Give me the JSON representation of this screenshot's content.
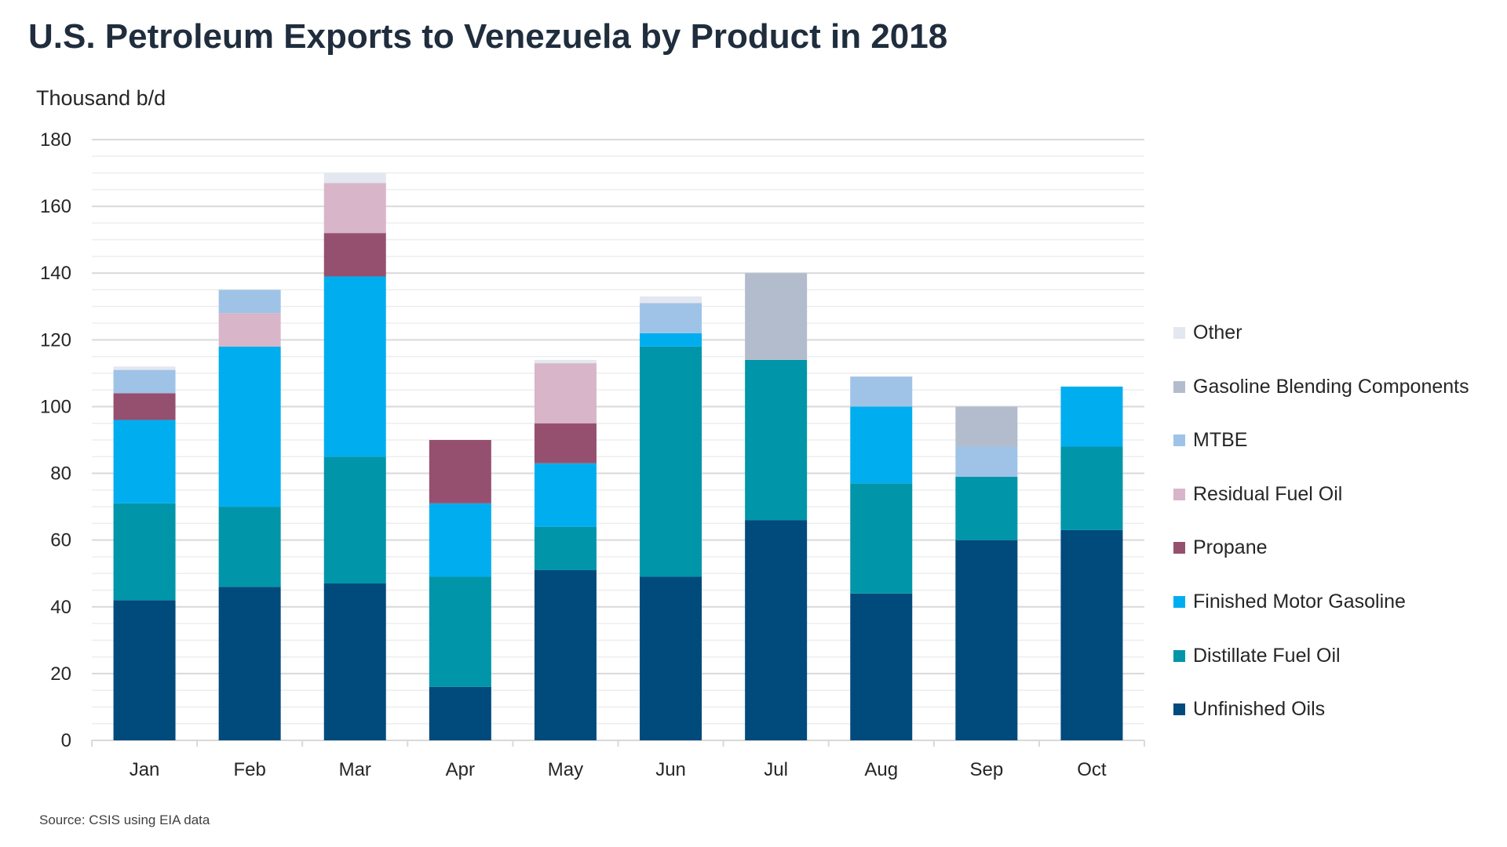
{
  "chart_data": {
    "type": "bar",
    "stacked": true,
    "title": "U.S. Petroleum Exports to Venezuela by Product in 2018",
    "ylabel": "Thousand b/d",
    "xlabel": "",
    "ylim": [
      0,
      180
    ],
    "yticks": [
      0,
      20,
      40,
      60,
      80,
      100,
      120,
      140,
      160,
      180
    ],
    "grid": true,
    "legend_position": "right",
    "categories": [
      "Jan",
      "Feb",
      "Mar",
      "Apr",
      "May",
      "Jun",
      "Jul",
      "Aug",
      "Sep",
      "Oct"
    ],
    "series": [
      {
        "name": "Unfinished Oils",
        "color": "#004a7c",
        "values": [
          42,
          46,
          47,
          16,
          51,
          49,
          66,
          44,
          60,
          63
        ]
      },
      {
        "name": "Distillate Fuel Oil",
        "color": "#0095a8",
        "values": [
          29,
          24,
          38,
          33,
          13,
          69,
          48,
          33,
          19,
          25
        ]
      },
      {
        "name": "Finished Motor Gasoline",
        "color": "#00aef0",
        "values": [
          25,
          48,
          54,
          22,
          19,
          4,
          0,
          23,
          0,
          18
        ]
      },
      {
        "name": "Propane",
        "color": "#96506f",
        "values": [
          8,
          0,
          13,
          19,
          12,
          0,
          0,
          0,
          0,
          0
        ]
      },
      {
        "name": "Residual Fuel Oil",
        "color": "#d8b5c8",
        "values": [
          0,
          10,
          15,
          0,
          18,
          0,
          0,
          0,
          0,
          0
        ]
      },
      {
        "name": "MTBE",
        "color": "#9fc3e7",
        "values": [
          7,
          7,
          0,
          0,
          0,
          9,
          0,
          9,
          9,
          0
        ]
      },
      {
        "name": "Gasoline Blending Components",
        "color": "#b2bccd",
        "values": [
          0,
          0,
          0,
          0,
          0,
          0,
          26,
          0,
          12,
          0
        ]
      },
      {
        "name": "Other",
        "color": "#e3e7ef",
        "values": [
          1,
          0,
          3,
          0,
          1,
          2,
          0,
          0,
          0,
          0
        ]
      }
    ]
  },
  "source": "Source: CSIS using EIA data"
}
